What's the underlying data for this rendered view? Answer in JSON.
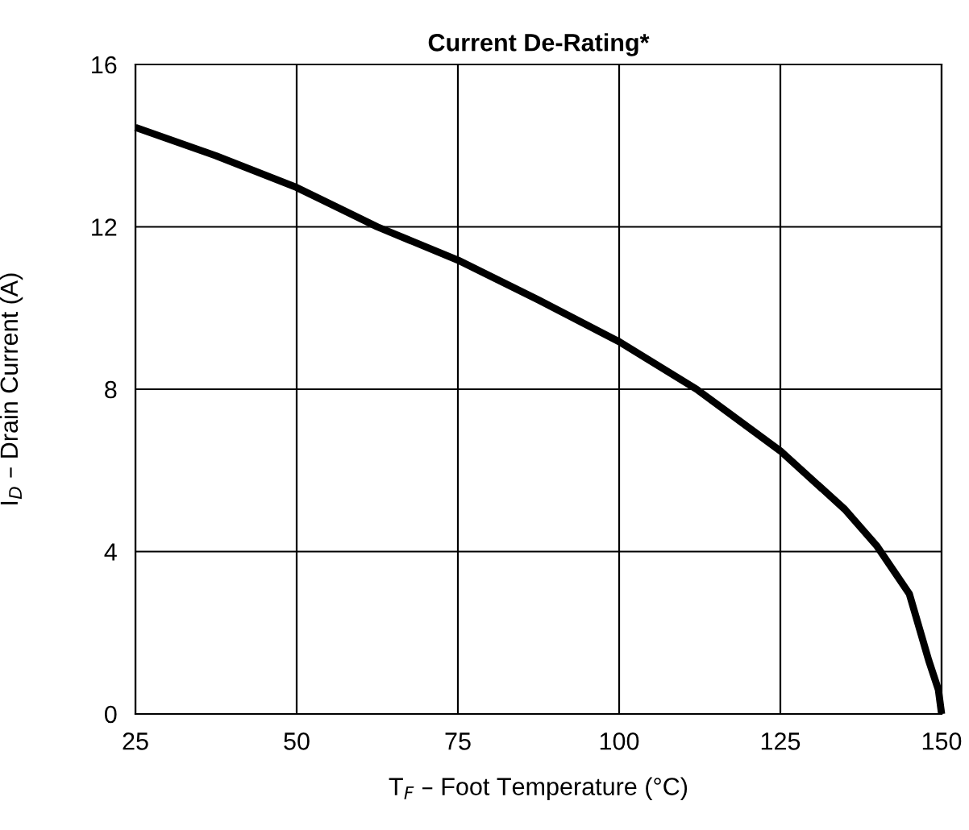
{
  "chart_data": {
    "type": "line",
    "title": "Current De-Rating*",
    "xlabel": "T$_{F}$ – Foot Temperature (°C)",
    "ylabel": "I$_{D}$ – Drain Current (A)",
    "series": [
      {
        "color": "#000000",
        "x": [
          25,
          37.5,
          50,
          62.5,
          75,
          87.5,
          100,
          112,
          125,
          135,
          140,
          145,
          148,
          149.5,
          150
        ],
        "values": [
          14.45,
          13.75,
          12.97,
          12.0,
          11.18,
          10.2,
          9.17,
          8.0,
          6.48,
          5.04,
          4.13,
          2.96,
          1.32,
          0.6,
          0
        ]
      }
    ],
    "xlim": [
      25,
      150
    ],
    "ylim": [
      0,
      16
    ],
    "xticks": [
      25,
      50,
      75,
      100,
      125,
      150
    ],
    "yticks": [
      0,
      4,
      8,
      12,
      16
    ],
    "grid": true,
    "marker": "none",
    "line_style": "solid"
  }
}
